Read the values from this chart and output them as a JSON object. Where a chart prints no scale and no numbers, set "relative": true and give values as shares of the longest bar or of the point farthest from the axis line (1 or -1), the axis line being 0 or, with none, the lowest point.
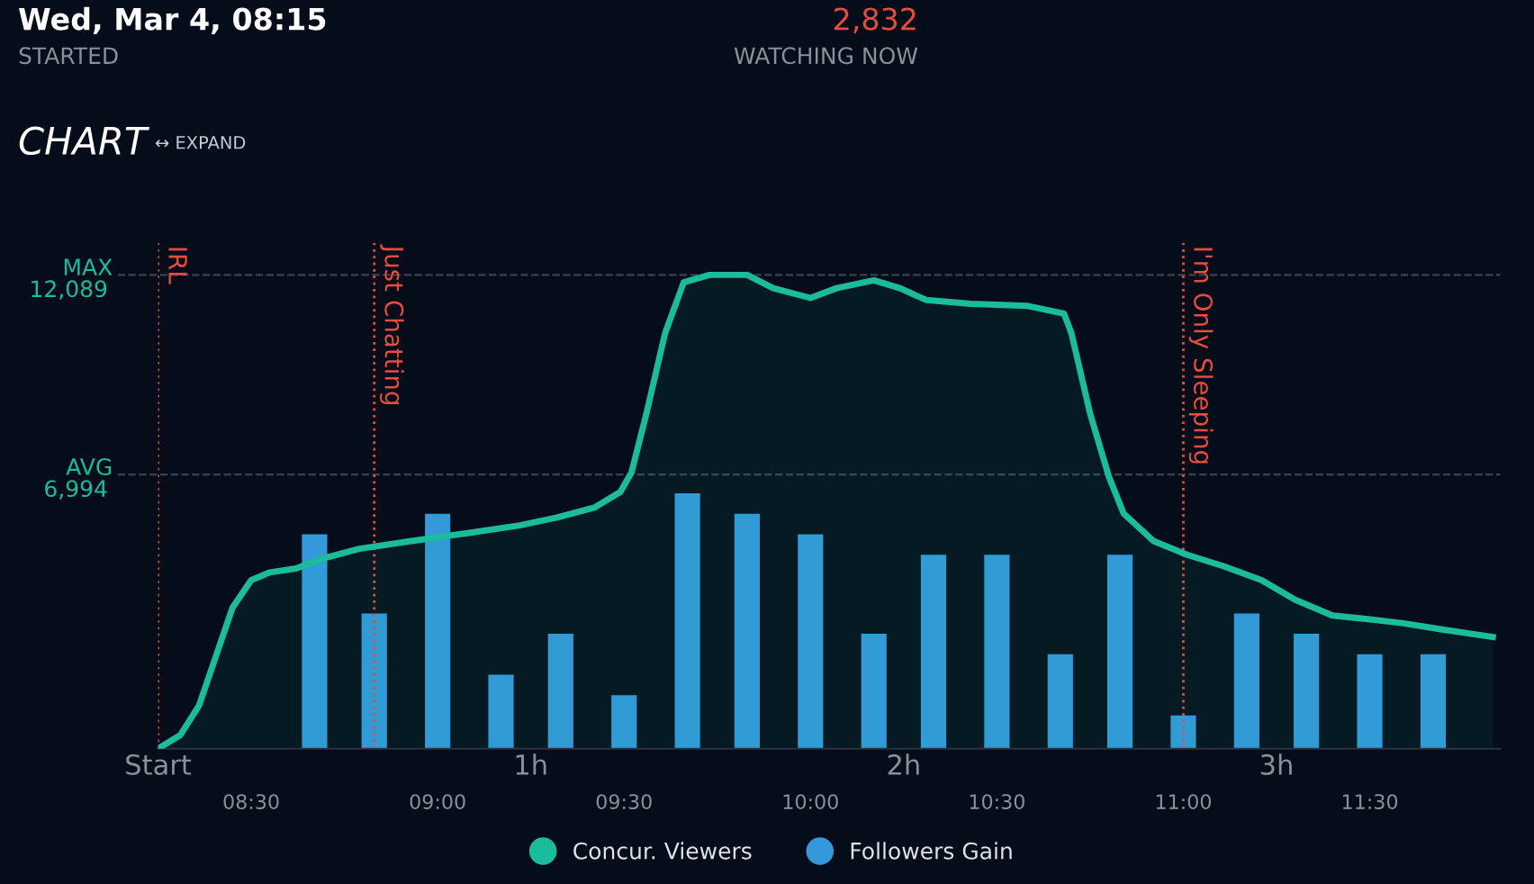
{
  "chart_data": [
    {
      "type": "area",
      "annotations": [
        "Wed, Mar 4, 08:15",
        "STARTED",
        "2,832",
        "WATCHING NOW",
        "CHART",
        "↔ EXPAND"
      ],
      "series": [
        {
          "name": "Concur. Viewers",
          "color": "#1abc9c",
          "x": [
            8.25,
            8.31,
            8.36,
            8.405,
            8.45,
            8.5,
            8.55,
            8.62,
            8.69,
            8.79,
            8.93,
            9.08,
            9.22,
            9.32,
            9.42,
            9.49,
            9.52,
            9.56,
            9.61,
            9.66,
            9.73,
            9.83,
            9.9,
            10.0,
            10.07,
            10.17,
            10.24,
            10.31,
            10.43,
            10.58,
            10.68,
            10.7,
            10.75,
            10.8,
            10.84,
            10.92,
            11.01,
            11.11,
            11.21,
            11.3,
            11.4,
            11.5,
            11.59,
            11.69,
            11.83
          ],
          "values": [
            0,
            350,
            1100,
            2350,
            3600,
            4300,
            4500,
            4600,
            4850,
            5100,
            5300,
            5500,
            5700,
            5900,
            6150,
            6550,
            7050,
            8550,
            10600,
            11900,
            12089,
            12089,
            11750,
            11500,
            11750,
            11950,
            11750,
            11450,
            11350,
            11300,
            11100,
            10600,
            8550,
            6950,
            6000,
            5300,
            4950,
            4650,
            4300,
            3800,
            3400,
            3300,
            3200,
            3050,
            2850
          ]
        }
      ],
      "xlim": [
        8.25,
        11.85
      ],
      "xticks": [
        {
          "value": 8.5,
          "label": "08:30"
        },
        {
          "value": 9.0,
          "label": "09:00"
        },
        {
          "value": 9.5,
          "label": "09:30"
        },
        {
          "value": 10.0,
          "label": "10:00"
        },
        {
          "value": 10.5,
          "label": "10:30"
        },
        {
          "value": 11.0,
          "label": "11:00"
        },
        {
          "value": 11.5,
          "label": "11:30"
        }
      ],
      "x2lim": [
        0,
        3.6
      ],
      "x2ticks": [
        {
          "value": 0,
          "label": "Start"
        },
        {
          "value": 1,
          "label": "1h"
        },
        {
          "value": 2,
          "label": "2h"
        },
        {
          "value": 3,
          "label": "3h"
        }
      ],
      "ylim": [
        0,
        12900
      ],
      "yticks": [
        {
          "value": 6994,
          "label": "6,994"
        },
        {
          "value": 12089,
          "label": "12,089"
        }
      ],
      "ref_lines": [
        {
          "axis": "y",
          "value": 6994,
          "label": "AVG",
          "color": "#3a4250",
          "line_style": "dashed"
        },
        {
          "axis": "y",
          "value": 12089,
          "label": "MAX",
          "color": "#3a4250",
          "line_style": "dashed"
        },
        {
          "axis": "x",
          "value": 8.25,
          "label": "IRL",
          "color": "#e74c3c",
          "line_style": "dotted"
        },
        {
          "axis": "x",
          "value": 8.83,
          "label": "Just Chatting",
          "color": "#e74c3c",
          "line_style": "dotted"
        },
        {
          "axis": "x",
          "value": 11.0,
          "label": "I'm Only Sleeping",
          "color": "#e74c3c",
          "line_style": "dotted"
        }
      ],
      "legend": "bottom"
    },
    {
      "type": "bar",
      "relative": true,
      "x": [
        8.67,
        8.83,
        9.0,
        9.17,
        9.33,
        9.5,
        9.67,
        9.83,
        10.0,
        10.17,
        10.33,
        10.5,
        10.67,
        10.83,
        11.0,
        11.17,
        11.33,
        11.5,
        11.67
      ],
      "series": [
        {
          "name": "Followers Gain",
          "color": "#3498db",
          "values": [
            0.84,
            0.53,
            0.92,
            0.29,
            0.45,
            0.21,
            1,
            0.92,
            0.84,
            0.45,
            0.76,
            0.76,
            0.37,
            0.76,
            0.13,
            0.53,
            0.45,
            0.37,
            0.37
          ]
        }
      ],
      "xlim": [
        8.25,
        11.85
      ],
      "legend": "bottom"
    }
  ]
}
